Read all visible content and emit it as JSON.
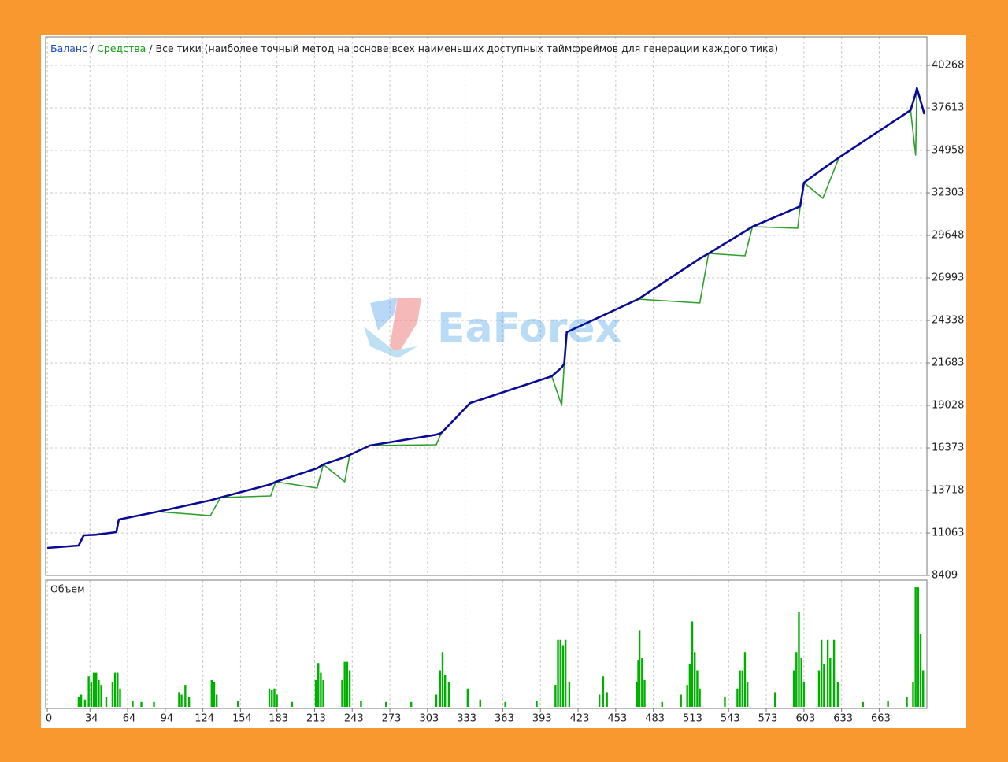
{
  "watermark": "EaForex",
  "chart_data": [
    {
      "type": "line",
      "separator": "/",
      "subtitle": "Все тики (наиболее точный метод на основе всех наименьших доступных таймфреймов для генерации каждого тика)",
      "xlim": [
        -1.3,
        701
      ],
      "ylim": [
        8409,
        42040
      ],
      "yticks": [
        8409,
        11063,
        13718,
        16373,
        19028,
        21683,
        24338,
        26993,
        29648,
        32303,
        34958,
        37613,
        40268
      ],
      "grid": true,
      "x": [
        0,
        25,
        29,
        38,
        55,
        57,
        88,
        130,
        138,
        178,
        182,
        215,
        220,
        237,
        241,
        257,
        310,
        314,
        337,
        402,
        410,
        412,
        414,
        471,
        520,
        527,
        556,
        562,
        598,
        600,
        603,
        618,
        631,
        688,
        692,
        693,
        699
      ],
      "series": [
        {
          "name": "Баланс",
          "color": "#0a0a96",
          "values": [
            10130,
            10278,
            10917,
            10950,
            11113,
            11900,
            12392,
            13100,
            13277,
            14100,
            14260,
            15100,
            15342,
            15800,
            15932,
            16522,
            17200,
            17308,
            19177,
            20849,
            21400,
            21636,
            23603,
            25668,
            28200,
            28520,
            29900,
            30191,
            31400,
            31470,
            32944,
            33800,
            34517,
            37467,
            38500,
            38844,
            37221
          ]
        },
        {
          "name": "Средства",
          "color": "#2ca02c",
          "values": [
            10130,
            10278,
            10917,
            10933,
            11113,
            11900,
            12392,
            12146,
            13277,
            13375,
            14260,
            13867,
            15342,
            14260,
            15932,
            16522,
            16571,
            17308,
            19177,
            20849,
            19030,
            21636,
            23603,
            25668,
            25422,
            28520,
            28372,
            30191,
            30093,
            31470,
            32944,
            31962,
            34517,
            37467,
            34666,
            38844,
            37221
          ]
        }
      ]
    },
    {
      "type": "bar",
      "title": "Объем",
      "color": "#00b000",
      "xlim": [
        -1.3,
        701
      ],
      "ylim": [
        0,
        100
      ],
      "xticks": [
        0,
        34,
        64,
        94,
        124,
        154,
        183,
        213,
        243,
        273,
        303,
        333,
        363,
        393,
        423,
        453,
        483,
        513,
        543,
        573,
        603,
        633,
        663
      ],
      "grid": true,
      "x": [
        25,
        27,
        30,
        33,
        35,
        37,
        39,
        41,
        43,
        47,
        52,
        54,
        56,
        58,
        68,
        75,
        85,
        105,
        107,
        110,
        113,
        131,
        133,
        135,
        152,
        177,
        179,
        181,
        183,
        195,
        214,
        216,
        218,
        220,
        235,
        237,
        239,
        241,
        250,
        270,
        290,
        310,
        313,
        315,
        317,
        320,
        335,
        345,
        365,
        390,
        405,
        407,
        409,
        411,
        413,
        416,
        440,
        443,
        446,
        470,
        471,
        472,
        474,
        476,
        490,
        505,
        510,
        512,
        514,
        516,
        518,
        520,
        540,
        550,
        552,
        554,
        556,
        558,
        580,
        595,
        597,
        599,
        601,
        603,
        615,
        617,
        619,
        622,
        624,
        627,
        630,
        650,
        670,
        685,
        690,
        692,
        694,
        696,
        698
      ],
      "values": [
        8,
        10,
        6,
        25,
        20,
        28,
        28,
        22,
        18,
        8,
        20,
        28,
        28,
        15,
        5,
        4,
        4,
        12,
        10,
        18,
        8,
        22,
        20,
        10,
        5,
        15,
        14,
        15,
        10,
        4,
        22,
        36,
        28,
        22,
        22,
        37,
        37,
        30,
        5,
        4,
        4,
        10,
        30,
        45,
        26,
        20,
        15,
        6,
        4,
        5,
        18,
        55,
        55,
        50,
        55,
        20,
        10,
        25,
        12,
        20,
        38,
        63,
        40,
        22,
        4,
        10,
        18,
        35,
        70,
        45,
        30,
        15,
        8,
        15,
        30,
        30,
        45,
        20,
        12,
        30,
        45,
        78,
        40,
        20,
        30,
        55,
        35,
        55,
        40,
        55,
        20,
        4,
        5,
        8,
        20,
        98,
        98,
        60,
        30
      ]
    }
  ]
}
